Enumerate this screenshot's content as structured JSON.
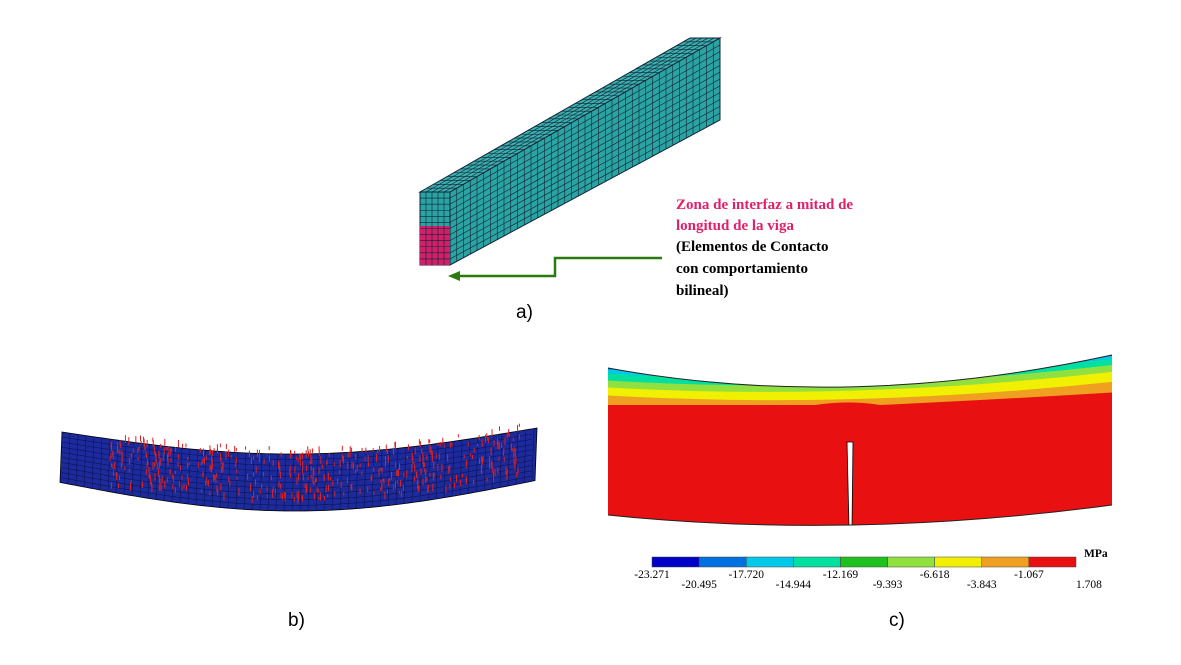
{
  "panel_a": {
    "label": "a)",
    "annotation": {
      "highlight_lines": [
        "Zona de interfaz a mitad de",
        "longitud de la viga"
      ],
      "note_lines": [
        "(Elementos de Contacto",
        "con comportamiento",
        "bilineal)"
      ]
    }
  },
  "panel_b": {
    "label": "b)"
  },
  "panel_c": {
    "label": "c)",
    "colorbar": {
      "unit": "MPa",
      "labels": [
        "-23.271",
        "-20.495",
        "-17.720",
        "-14.944",
        "-12.169",
        "-9.393",
        "-6.618",
        "-3.843",
        "-1.067",
        "1.708"
      ],
      "colors": [
        "#0000c8",
        "#0070e0",
        "#00c8e8",
        "#00e0a0",
        "#20c020",
        "#90e040",
        "#f0f000",
        "#f0a020",
        "#e81010"
      ]
    }
  }
}
